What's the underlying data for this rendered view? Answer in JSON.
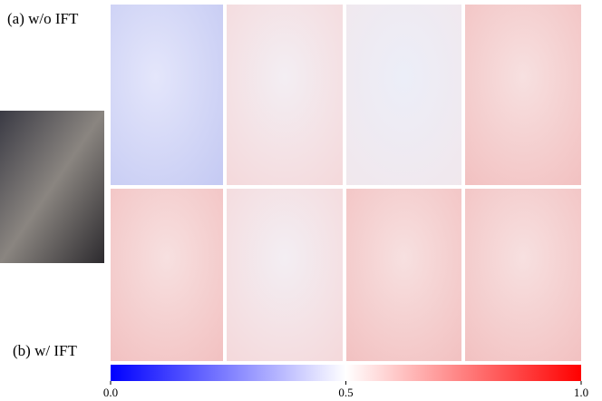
{
  "labels": {
    "top": "(a) w/o IFT",
    "bottom": "(b) w/ IFT"
  },
  "colorbar": {
    "lim": [
      0,
      1
    ],
    "ticks": [
      {
        "value": 0,
        "label": "0.0"
      },
      {
        "value": 0.5,
        "label": "0.5"
      },
      {
        "value": 1,
        "label": "1.0"
      }
    ],
    "colors": [
      "#0000ff",
      "#ffffff",
      "#ff0000"
    ]
  }
}
